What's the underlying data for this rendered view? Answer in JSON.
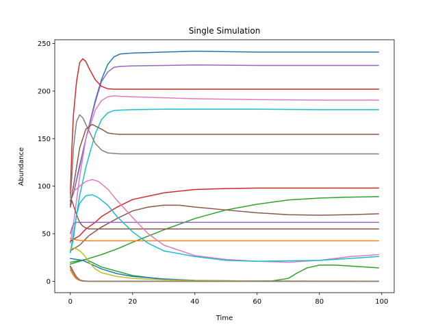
{
  "chart_data": {
    "type": "line",
    "title": "Single Simulation",
    "xlabel": "Time",
    "ylabel": "Abundance",
    "xlim": [
      -5,
      104
    ],
    "ylim": [
      -12,
      254
    ],
    "xticks": [
      0,
      20,
      40,
      60,
      80,
      100
    ],
    "yticks": [
      0,
      50,
      100,
      150,
      200,
      250
    ],
    "grid": false,
    "series": [
      {
        "color": "#1f77b4",
        "x": [
          0,
          1,
          3,
          5,
          8,
          10,
          12,
          14,
          16,
          20,
          30,
          40,
          50,
          60,
          70,
          80,
          90,
          99
        ],
        "values": [
          85,
          92,
          122,
          150,
          190,
          212,
          228,
          236,
          239,
          240,
          241,
          242,
          241.5,
          241,
          241,
          241,
          241,
          241
        ]
      },
      {
        "color": "#9467bd",
        "x": [
          0,
          1,
          3,
          5,
          8,
          10,
          12,
          14,
          16,
          20,
          30,
          40,
          60,
          80,
          99
        ],
        "values": [
          84,
          92,
          120,
          150,
          188,
          210,
          220,
          225,
          226,
          226.5,
          227,
          227.5,
          227,
          227,
          227
        ]
      },
      {
        "color": "#d62728",
        "x": [
          0,
          0.5,
          1,
          2,
          3,
          4,
          5,
          6,
          8,
          10,
          12,
          14,
          16,
          20,
          40,
          60,
          80,
          99
        ],
        "values": [
          92,
          140,
          175,
          210,
          230,
          234,
          231,
          224,
          212,
          205,
          202.5,
          202,
          202,
          202,
          202,
          202,
          202,
          202
        ]
      },
      {
        "color": "#e377c2",
        "x": [
          0,
          1,
          3,
          5,
          8,
          10,
          12,
          14,
          16,
          20,
          30,
          40,
          60,
          80,
          99
        ],
        "values": [
          40,
          60,
          110,
          150,
          180,
          190,
          194,
          195,
          194.5,
          194,
          193,
          192,
          191,
          190.5,
          190.5
        ]
      },
      {
        "color": "#17becf",
        "x": [
          0,
          1,
          3,
          5,
          8,
          10,
          12,
          14,
          16,
          20,
          30,
          40,
          60,
          80,
          99
        ],
        "values": [
          30,
          50,
          90,
          120,
          155,
          170,
          177,
          179.5,
          180,
          180.5,
          181,
          181,
          181,
          180.5,
          180.5
        ]
      },
      {
        "color": "#7f7f7f",
        "x": [
          0,
          0.5,
          1,
          2,
          3,
          4,
          5,
          6,
          8,
          10,
          12,
          14,
          16,
          20,
          40,
          60,
          80,
          99
        ],
        "values": [
          88,
          110,
          140,
          168,
          175,
          172,
          165,
          158,
          145,
          138,
          135,
          134.5,
          134,
          134,
          134,
          134,
          134,
          134
        ]
      },
      {
        "color": "#8c564b",
        "x": [
          0,
          1,
          3,
          5,
          7,
          10,
          12,
          14,
          16,
          20,
          30,
          40,
          60,
          80,
          99
        ],
        "values": [
          80,
          100,
          140,
          160,
          165,
          160,
          156,
          155,
          154.5,
          154.5,
          154.5,
          154.5,
          154.5,
          154.5,
          154.5
        ]
      },
      {
        "color": "#d62728",
        "x": [
          0,
          1,
          3,
          5,
          8,
          10,
          15,
          20,
          30,
          40,
          50,
          60,
          80,
          99
        ],
        "values": [
          42,
          44,
          48,
          55,
          62,
          68,
          78,
          86,
          93,
          96.5,
          97.5,
          98,
          98,
          98
        ]
      },
      {
        "color": "#2ca02c",
        "x": [
          0,
          5,
          10,
          15,
          20,
          30,
          40,
          50,
          60,
          70,
          80,
          90,
          99
        ],
        "values": [
          18,
          23,
          28,
          34,
          41,
          54,
          66,
          75,
          81,
          85.5,
          87.5,
          88.5,
          89
        ]
      },
      {
        "color": "#8c564b",
        "x": [
          0,
          3,
          6,
          10,
          15,
          20,
          25,
          30,
          35,
          40,
          50,
          60,
          70,
          80,
          90,
          99
        ],
        "values": [
          32,
          38,
          48,
          57,
          66,
          74,
          78,
          80,
          80,
          78,
          75,
          72,
          70,
          69.5,
          70,
          71
        ]
      },
      {
        "color": "#9467bd",
        "x": [
          0,
          0.5,
          1,
          1.5,
          2,
          3,
          4,
          5,
          10,
          20,
          40,
          60,
          80,
          99
        ],
        "values": [
          50,
          56,
          60,
          61.5,
          62,
          62,
          62,
          62,
          62,
          62,
          62,
          62,
          62,
          62
        ]
      },
      {
        "color": "#8c564b",
        "x": [
          0,
          0.5,
          1,
          2,
          3,
          4,
          5,
          6,
          8,
          10,
          20,
          40,
          60,
          80,
          99
        ],
        "values": [
          78,
          85,
          80,
          70,
          62,
          58,
          56,
          55,
          55,
          55,
          55,
          55,
          55,
          55,
          55
        ]
      },
      {
        "color": "#ff7f0e",
        "x": [
          0,
          1,
          2,
          3,
          4,
          5,
          6,
          8,
          10,
          20,
          40,
          60,
          80,
          99
        ],
        "values": [
          45,
          44,
          43.5,
          43,
          42.8,
          42.5,
          42.5,
          42.5,
          42.5,
          42.5,
          42.5,
          42.5,
          42.5,
          42.5
        ]
      },
      {
        "color": "#e377c2",
        "x": [
          0,
          1,
          2,
          3,
          5,
          7,
          9,
          12,
          15,
          20,
          25,
          30,
          40,
          50,
          60,
          70,
          80,
          90,
          99
        ],
        "values": [
          95,
          95,
          97,
          100,
          105,
          107,
          105,
          97,
          85,
          67,
          50,
          38,
          27,
          23,
          21,
          20,
          22,
          26,
          28
        ]
      },
      {
        "color": "#17becf",
        "x": [
          0,
          1,
          2,
          3,
          5,
          7,
          9,
          12,
          15,
          20,
          25,
          30,
          40,
          50,
          60,
          70,
          80,
          90,
          99
        ],
        "values": [
          30,
          45,
          70,
          82,
          90,
          91,
          88,
          80,
          68,
          52,
          40,
          32,
          26,
          22,
          21,
          21.5,
          22,
          24,
          26
        ]
      },
      {
        "color": "#2ca02c",
        "x": [
          0,
          5,
          10,
          20,
          30,
          40,
          50,
          60,
          65,
          70,
          73,
          76,
          80,
          85,
          90,
          99
        ],
        "values": [
          20,
          23,
          15,
          6,
          2,
          0.8,
          0.3,
          0.2,
          0.5,
          3,
          9,
          14,
          17,
          17,
          16,
          14
        ]
      },
      {
        "color": "#1f77b4",
        "x": [
          0,
          2,
          4,
          6,
          10,
          15,
          20,
          30,
          40,
          60,
          80,
          99
        ],
        "values": [
          24,
          23,
          22,
          19,
          13,
          8,
          5,
          2.5,
          1,
          0.3,
          0.1,
          0.1
        ]
      },
      {
        "color": "#bcbd22",
        "x": [
          0,
          1,
          2,
          3,
          4,
          5,
          6,
          8,
          10,
          15,
          20,
          30,
          40,
          60,
          80,
          99
        ],
        "values": [
          34,
          35,
          34,
          32,
          29,
          25,
          20,
          13,
          9,
          5,
          3,
          1.5,
          0.8,
          0.3,
          0.2,
          0.1
        ]
      },
      {
        "color": "#bcbd22",
        "x": [
          0,
          0.5,
          1,
          1.5,
          2,
          3,
          4,
          5,
          6,
          8,
          10,
          20,
          40,
          60,
          80,
          99
        ],
        "values": [
          14,
          11,
          8,
          5,
          3,
          1,
          0.3,
          0.1,
          0,
          0,
          0,
          0,
          0,
          0,
          0,
          0
        ]
      },
      {
        "color": "#d62728",
        "x": [
          0,
          0.5,
          1,
          1.5,
          2,
          3,
          4,
          5,
          6,
          8,
          10,
          20,
          40,
          60,
          80,
          99
        ],
        "values": [
          16,
          13,
          10,
          7,
          4.5,
          1.5,
          0.5,
          0.2,
          0,
          0,
          0,
          0,
          0,
          0,
          0,
          0
        ]
      },
      {
        "color": "#ff7f0e",
        "x": [
          0,
          0.5,
          1,
          1.5,
          2,
          3,
          4,
          5,
          6,
          8,
          10,
          20,
          40,
          60,
          80,
          99
        ],
        "values": [
          12,
          9,
          6,
          4,
          2.5,
          0.8,
          0.2,
          0,
          0,
          0,
          0,
          0,
          0,
          0,
          0,
          0
        ]
      },
      {
        "color": "#7f7f7f",
        "x": [
          0,
          0.5,
          1,
          1.5,
          2,
          3,
          4,
          5,
          6,
          8,
          10,
          20,
          40,
          60,
          80,
          99
        ],
        "values": [
          15,
          12,
          9,
          6,
          4,
          1.2,
          0.4,
          0.1,
          0,
          0,
          0,
          0,
          0,
          0,
          0,
          0
        ]
      }
    ]
  }
}
